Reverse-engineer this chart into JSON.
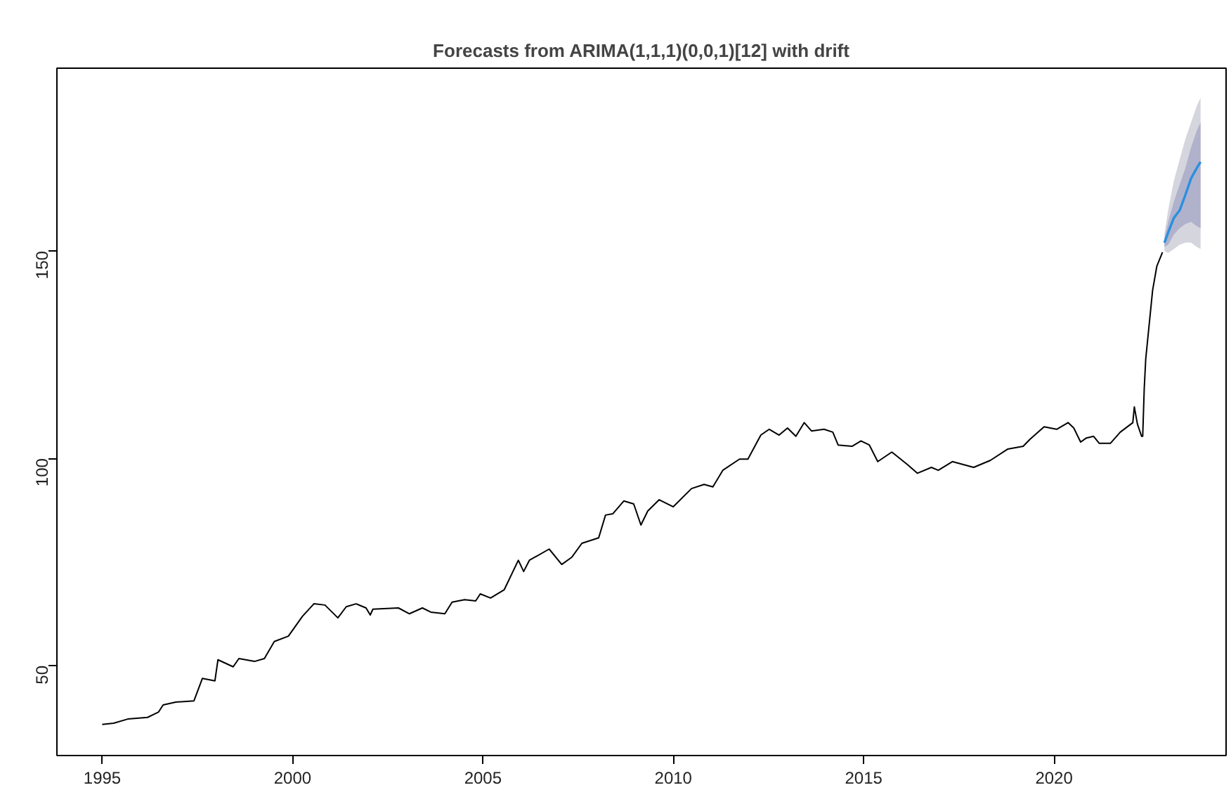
{
  "chart_data": {
    "type": "line",
    "title": "Forecasts from ARIMA(1,1,1)(0,0,1)[12] with drift",
    "xlim": [
      1993.81,
      2024.52
    ],
    "ylim": [
      28.3,
      194.1
    ],
    "xticks": [
      1995,
      2000,
      2005,
      2010,
      2015,
      2020
    ],
    "yticks": [
      50,
      100,
      150
    ],
    "grid": false,
    "marker": "none",
    "line_style": "solid",
    "series": [
      {
        "color": "#000000",
        "x": [
          1995.0,
          1995.3,
          1995.67,
          1996.19,
          1996.48,
          1996.6,
          1996.93,
          1997.41,
          1997.63,
          1997.96,
          1998.04,
          1998.44,
          1998.59,
          1999.0,
          1999.26,
          1999.52,
          1999.89,
          2000.26,
          2000.56,
          2000.85,
          2001.19,
          2001.41,
          2001.67,
          2001.93,
          2002.04,
          2002.11,
          2002.78,
          2003.07,
          2003.41,
          2003.63,
          2004.0,
          2004.19,
          2004.52,
          2004.81,
          2004.93,
          2005.2,
          2005.56,
          2005.93,
          2006.07,
          2006.22,
          2006.74,
          2007.07,
          2007.33,
          2007.6,
          2008.04,
          2008.22,
          2008.41,
          2008.7,
          2008.96,
          2009.15,
          2009.33,
          2009.63,
          2010.0,
          2010.48,
          2010.81,
          2011.04,
          2011.3,
          2011.74,
          2011.96,
          2012.3,
          2012.52,
          2012.78,
          2013.0,
          2013.22,
          2013.44,
          2013.63,
          2013.96,
          2014.19,
          2014.33,
          2014.7,
          2014.93,
          2015.15,
          2015.37,
          2015.74,
          2016.15,
          2016.41,
          2016.78,
          2016.96,
          2017.33,
          2017.89,
          2018.33,
          2018.78,
          2019.19,
          2019.37,
          2019.74,
          2020.07,
          2020.37,
          2020.52,
          2020.7,
          2020.85,
          2021.04,
          2021.19,
          2021.48,
          2021.74,
          2022.07,
          2022.11,
          2022.19,
          2022.3,
          2022.33,
          2022.37,
          2022.41,
          2022.59,
          2022.7,
          2022.85
        ],
        "values": [
          35.8,
          36.1,
          37.1,
          37.5,
          38.8,
          40.5,
          41.2,
          41.5,
          46.9,
          46.3,
          51.4,
          49.7,
          51.7,
          51,
          51.7,
          55.8,
          57.1,
          61.9,
          64.9,
          64.6,
          61.5,
          64.2,
          64.9,
          63.9,
          62.2,
          63.6,
          63.9,
          62.5,
          63.9,
          62.9,
          62.5,
          65.3,
          65.9,
          65.6,
          67.3,
          66.3,
          68.3,
          75.4,
          72.7,
          75.4,
          78.1,
          74.4,
          76.1,
          79.5,
          80.8,
          86.3,
          86.6,
          89.7,
          89,
          83.9,
          87.3,
          90,
          88.3,
          92.7,
          93.7,
          93.1,
          97.1,
          99.8,
          99.8,
          105.6,
          107,
          105.6,
          107.3,
          105.3,
          108.6,
          106.6,
          107,
          106.3,
          103.2,
          102.9,
          104.2,
          103.2,
          99.2,
          101.5,
          98.5,
          96.4,
          97.8,
          97.1,
          99.2,
          97.8,
          99.5,
          102.2,
          102.9,
          104.6,
          107.6,
          107,
          108.6,
          107.3,
          103.9,
          104.9,
          105.3,
          103.6,
          103.6,
          106.3,
          108.6,
          112.4,
          108.3,
          105.3,
          105.3,
          116.8,
          124,
          140.5,
          146.3,
          149.7
        ]
      },
      {
        "color": "#2a8fe0",
        "x": [
          2022.9,
          2023.0,
          2023.15,
          2023.3,
          2023.45,
          2023.6,
          2023.75,
          2023.85
        ],
        "values": [
          152,
          154.5,
          158,
          159.8,
          163.5,
          167.5,
          170,
          171.5
        ]
      },
      {
        "color": "#b0b2cc",
        "x": [
          2022.9,
          2023.0,
          2023.15,
          2023.3,
          2023.45,
          2023.6,
          2023.75,
          2023.85
        ],
        "values": [
          null,
          null,
          null,
          null,
          null,
          null,
          null,
          null
        ],
        "lower": [
          151,
          151.5,
          154,
          155.5,
          156.5,
          157,
          156,
          155.5
        ],
        "upper": [
          153,
          157,
          162,
          166,
          170,
          175,
          179,
          181
        ]
      },
      {
        "color": "#d5d5de",
        "x": [
          2022.9,
          2023.0,
          2023.15,
          2023.3,
          2023.45,
          2023.6,
          2023.75,
          2023.85
        ],
        "values": [
          null,
          null,
          null,
          null,
          null,
          null,
          null,
          null
        ],
        "lower": [
          150,
          149.5,
          150.5,
          151.5,
          152,
          152,
          151,
          150.5
        ],
        "upper": [
          154,
          160,
          167,
          172,
          177,
          181,
          185,
          187
        ]
      }
    ]
  }
}
